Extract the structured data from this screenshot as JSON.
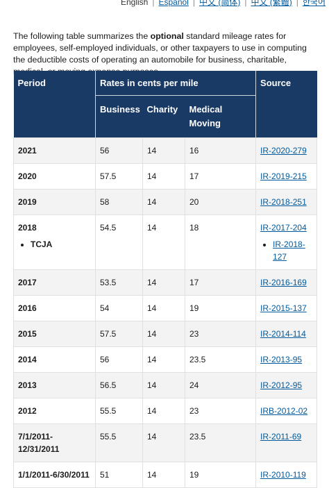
{
  "languages": {
    "english": "English",
    "espanol": "Español",
    "zh_simplified": "中文 (简体)",
    "zh_traditional": "中文 (繁體)",
    "korean": "한국어"
  },
  "intro": {
    "before": "The following table summarizes the ",
    "emphasis": "optional",
    "after": " standard mileage rates for employees, self-employed individuals, or other taxpayers to use in computing the deductible costs of operating an automobile for business, charitable, medical, or moving expense purposes."
  },
  "table": {
    "headers": {
      "period": "Period",
      "rates": "Rates in cents per mile",
      "source": "Source",
      "business": "Business",
      "charity": "Charity",
      "medical_moving": "Medical Moving"
    },
    "rows": [
      {
        "period": "2021",
        "business": "56",
        "charity": "14",
        "medical": "16",
        "source": "IR-2020-279"
      },
      {
        "period": "2020",
        "business": "57.5",
        "charity": "14",
        "medical": "17",
        "source": "IR-2019-215"
      },
      {
        "period": "2019",
        "business": "58",
        "charity": "14",
        "medical": "20",
        "source": "IR-2018-251"
      },
      {
        "period": "2018",
        "period_note": "TCJA",
        "business": "54.5",
        "charity": "14",
        "medical": "18",
        "source": "IR-2017-204",
        "source_note": "IR-2018-127"
      },
      {
        "period": "2017",
        "business": "53.5",
        "charity": "14",
        "medical": "17",
        "source": "IR-2016-169"
      },
      {
        "period": "2016",
        "business": "54",
        "charity": "14",
        "medical": "19",
        "source": "IR-2015-137"
      },
      {
        "period": "2015",
        "business": "57.5",
        "charity": "14",
        "medical": "23",
        "source": "IR-2014-114"
      },
      {
        "period": "2014",
        "business": "56",
        "charity": "14",
        "medical": "23.5",
        "source": "IR-2013-95"
      },
      {
        "period": "2013",
        "business": "56.5",
        "charity": "14",
        "medical": "24",
        "source": "IR-2012-95"
      },
      {
        "period": "2012",
        "business": "55.5",
        "charity": "14",
        "medical": "23",
        "source": "IRB-2012-02"
      },
      {
        "period": "7/1/2011-12/31/2011",
        "business": "55.5",
        "charity": "14",
        "medical": "23.5",
        "source": "IR-2011-69"
      },
      {
        "period": "1/1/2011-6/30/2011",
        "business": "51",
        "charity": "14",
        "medical": "19",
        "source": "IR-2010-119"
      }
    ]
  }
}
